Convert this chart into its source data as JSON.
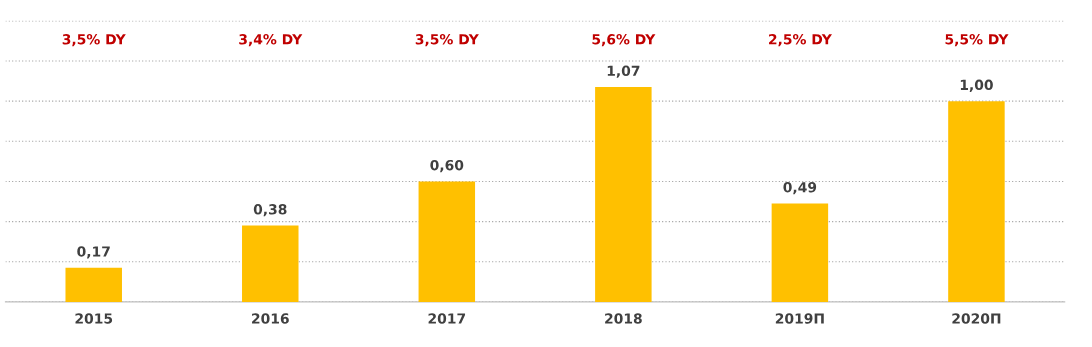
{
  "chart_data": {
    "type": "bar",
    "categories": [
      "2015",
      "2016",
      "2017",
      "2018",
      "2019П",
      "2020П"
    ],
    "values": [
      0.17,
      0.38,
      0.6,
      1.07,
      0.49,
      1.0
    ],
    "value_labels": [
      "0,17",
      "0,38",
      "0,60",
      "1,07",
      "0,49",
      "1,00"
    ],
    "color": "#ffc000",
    "ylim": [
      0,
      1.4
    ],
    "yticks": [
      {
        "value": 0,
        "label": null
      },
      {
        "value": 0.2,
        "label": null
      },
      {
        "value": 0.4,
        "label": null
      },
      {
        "value": 0.6,
        "label": null
      },
      {
        "value": 0.8,
        "label": null
      },
      {
        "value": 1.0,
        "label": null
      },
      {
        "value": 1.2,
        "label": null
      },
      {
        "value": 1.4,
        "label": null
      }
    ],
    "tick_labels": "x",
    "grid": "y",
    "annotations": [
      "3,5% DY",
      "3,4% DY",
      "3,5% DY",
      "5,6% DY",
      "2,5% DY",
      "5,5% DY"
    ]
  }
}
